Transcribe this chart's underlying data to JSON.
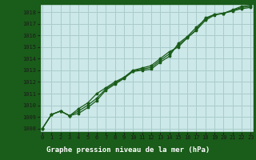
{
  "title": "Graphe pression niveau de la mer (hPa)",
  "bg_color": "#cce8e8",
  "plot_bg_color": "#cce8e8",
  "grid_color": "#aacccc",
  "line_color": "#1a5c1a",
  "axis_color": "#1a5c1a",
  "title_bg": "#1a5c1a",
  "title_fg": "#ffffff",
  "x_ticks": [
    0,
    1,
    2,
    3,
    4,
    5,
    6,
    7,
    8,
    9,
    10,
    11,
    12,
    13,
    14,
    15,
    16,
    17,
    18,
    19,
    20,
    21,
    22,
    23
  ],
  "y_ticks": [
    1008,
    1009,
    1010,
    1011,
    1012,
    1013,
    1014,
    1015,
    1016,
    1017,
    1018
  ],
  "xlim": [
    -0.3,
    23.3
  ],
  "ylim": [
    1007.7,
    1018.7
  ],
  "series1": [
    1008.0,
    1009.2,
    1009.5,
    1009.1,
    1009.3,
    1009.8,
    1010.4,
    1011.3,
    1011.8,
    1012.3,
    1012.9,
    1013.0,
    1013.1,
    1013.7,
    1014.2,
    1015.3,
    1015.9,
    1016.7,
    1017.4,
    1017.8,
    1017.9,
    1018.1,
    1018.3,
    1018.4
  ],
  "series2": [
    1008.0,
    1009.2,
    1009.5,
    1009.1,
    1009.7,
    1010.2,
    1011.0,
    1011.5,
    1012.0,
    1012.4,
    1013.0,
    1013.2,
    1013.4,
    1014.0,
    1014.6,
    1015.0,
    1015.8,
    1016.5,
    1017.5,
    1017.8,
    1017.9,
    1018.2,
    1018.5,
    1018.6
  ],
  "series3": [
    1008.0,
    1009.2,
    1009.5,
    1009.1,
    1009.5,
    1010.0,
    1010.6,
    1011.4,
    1011.9,
    1012.35,
    1012.95,
    1013.1,
    1013.25,
    1013.85,
    1014.4,
    1015.15,
    1015.8,
    1016.45,
    1017.3,
    1017.75,
    1017.9,
    1018.15,
    1018.4,
    1018.5
  ]
}
